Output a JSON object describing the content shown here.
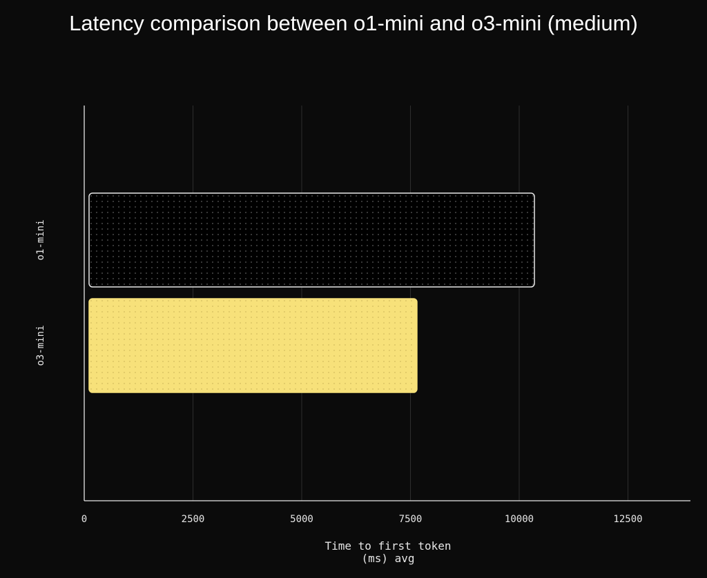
{
  "chart_data": {
    "type": "bar",
    "orientation": "horizontal",
    "title": "Latency comparison between o1-mini and o3-mini (medium)",
    "xlabel_line1": "Time to first token",
    "xlabel_line2": "(ms) avg",
    "ylabel": "",
    "categories": [
      "o1-mini",
      "o3-mini"
    ],
    "values": [
      10350,
      7650
    ],
    "xlim": [
      0,
      14000
    ],
    "xticks": [
      0,
      2500,
      5000,
      7500,
      10000,
      12500
    ],
    "grid": true,
    "legend": "none",
    "bar_colors": [
      "#000000",
      "#f7e17a"
    ],
    "bar_outline_colors": [
      "#e8e8e8",
      "#f7e17a"
    ],
    "dot_colors": [
      "#7a7a7a",
      "#c9b256"
    ]
  },
  "colors": {
    "background": "#0b0b0b",
    "axis": "#e8e8e8",
    "grid": "#2e2e2e",
    "text": "#e6e6e6"
  }
}
